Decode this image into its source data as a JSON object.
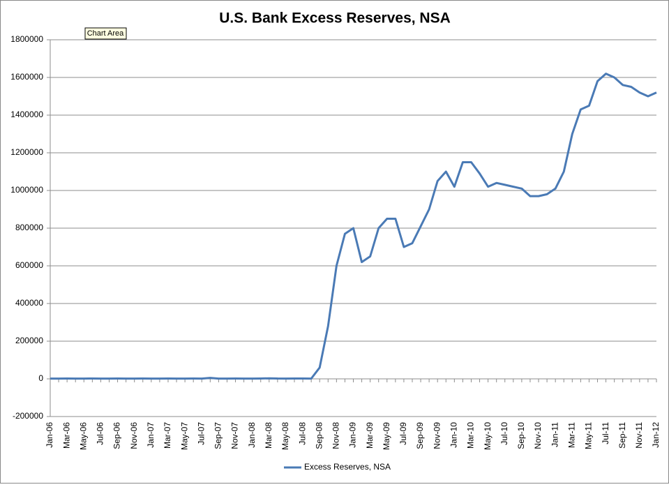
{
  "chart_data": {
    "type": "line",
    "title": "U.S. Bank Excess Reserves, NSA",
    "tooltip": "Chart Area",
    "categories": [
      "Jan-06",
      null,
      "Mar-06",
      null,
      "May-06",
      null,
      "Jul-06",
      null,
      "Sep-06",
      null,
      "Nov-06",
      null,
      "Jan-07",
      null,
      "Mar-07",
      null,
      "May-07",
      null,
      "Jul-07",
      null,
      "Sep-07",
      null,
      "Nov-07",
      null,
      "Jan-08",
      null,
      "Mar-08",
      null,
      "May-08",
      null,
      "Jul-08",
      null,
      "Sep-08",
      null,
      "Nov-08",
      null,
      "Jan-09",
      null,
      "Mar-09",
      null,
      "May-09",
      null,
      "Jul-09",
      null,
      "Sep-09",
      null,
      "Nov-09",
      null,
      "Jan-10",
      null,
      "Mar-10",
      null,
      "May-10",
      null,
      "Jul-10",
      null,
      "Sep-10",
      null,
      "Nov-10",
      null,
      "Jan-11",
      null,
      "Mar-11",
      null,
      "May-11",
      null,
      "Jul-11",
      null,
      "Sep-11",
      null,
      "Nov-11",
      null,
      "Jan-12"
    ],
    "series": [
      {
        "name": "Excess Reserves, NSA",
        "color": "#4a7ab5",
        "values": [
          1500,
          1600,
          1700,
          1500,
          1600,
          1700,
          1500,
          1600,
          1700,
          1500,
          1600,
          1700,
          1500,
          1600,
          1700,
          1500,
          1600,
          1700,
          1500,
          5000,
          1600,
          1500,
          1700,
          1600,
          1500,
          1800,
          3000,
          1700,
          1600,
          1800,
          1700,
          1500,
          60000,
          280000,
          600000,
          770000,
          800000,
          620000,
          650000,
          800000,
          850000,
          850000,
          700000,
          720000,
          810000,
          900000,
          1050000,
          1100000,
          1020000,
          1150000,
          1150000,
          1090000,
          1020000,
          1040000,
          1030000,
          1020000,
          1010000,
          970000,
          970000,
          980000,
          1010000,
          1100000,
          1300000,
          1430000,
          1450000,
          1580000,
          1620000,
          1600000,
          1560000,
          1550000,
          1520000,
          1500000,
          1520000
        ]
      }
    ],
    "ylim": [
      -200000,
      1800000
    ],
    "yticks": [
      -200000,
      0,
      200000,
      400000,
      600000,
      800000,
      1000000,
      1200000,
      1400000,
      1600000,
      1800000
    ],
    "grid": true,
    "legend": "bottom"
  }
}
